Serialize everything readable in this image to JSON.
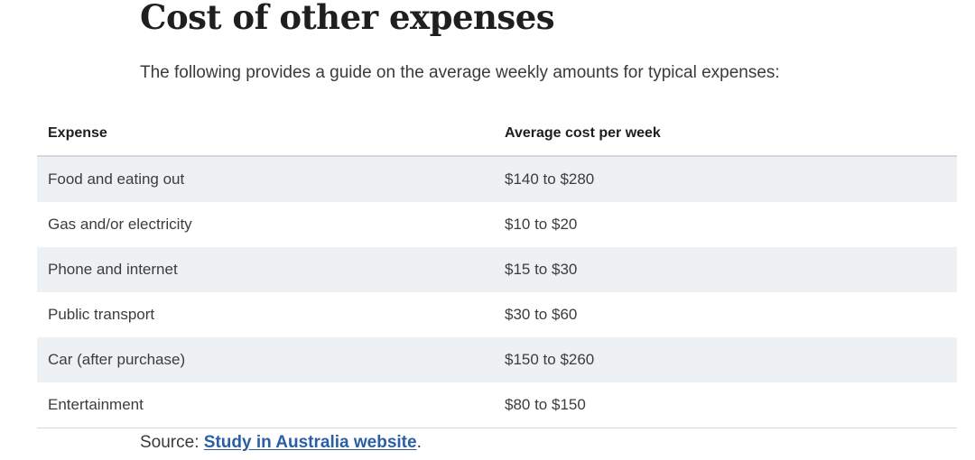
{
  "heading": "Cost of other expenses",
  "intro": "The following provides a guide on the average weekly amounts for typical expenses:",
  "table": {
    "headers": [
      "Expense",
      "Average cost per week"
    ],
    "rows": [
      [
        "Food and eating out",
        "$140 to $280"
      ],
      [
        "Gas and/or electricity",
        "$10 to $20"
      ],
      [
        "Phone and internet",
        "$15 to $30"
      ],
      [
        "Public transport",
        "$30 to $60"
      ],
      [
        "Car (after purchase)",
        "$150 to $260"
      ],
      [
        "Entertainment",
        "$80 to $150"
      ]
    ]
  },
  "source": {
    "prefix": "Source: ",
    "link_text": "Study in Australia website",
    "suffix": "."
  }
}
